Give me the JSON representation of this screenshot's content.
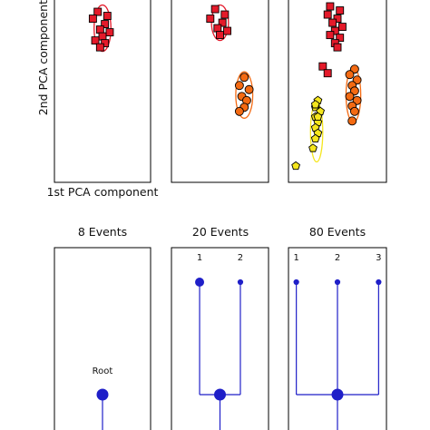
{
  "colors": {
    "red": "#e41a2a",
    "orange": "#f46a12",
    "yellow": "#f5e61c",
    "tree": "#1f1fc8",
    "axis": "#000000"
  },
  "chart_data": {
    "type": "scatter",
    "scatter_panels": {
      "xlabel": "1st PCA component",
      "ylabel": "2nd PCA component",
      "panels": [
        {
          "clusters": [
            {
              "marker": "square",
              "color": "red",
              "points": [
                [
                  0.1,
                  0.95
                ],
                [
                  0.14,
                  0.92
                ],
                [
                  0.08,
                  0.9
                ],
                [
                  0.13,
                  0.86
                ],
                [
                  0.11,
                  0.82
                ],
                [
                  0.15,
                  0.8
                ],
                [
                  0.12,
                  0.77
                ],
                [
                  0.09,
                  0.74
                ],
                [
                  0.13,
                  0.72
                ],
                [
                  0.11,
                  0.69
                ]
              ],
              "ellipse": {
                "cx": 0.12,
                "cy": 0.83,
                "rx": 0.035,
                "ry": 0.17
              }
            }
          ]
        },
        {
          "clusters": [
            {
              "marker": "square",
              "color": "red",
              "points": [
                [
                  0.1,
                  0.97
                ],
                [
                  0.14,
                  0.93
                ],
                [
                  0.08,
                  0.9
                ],
                [
                  0.13,
                  0.87
                ],
                [
                  0.11,
                  0.83
                ],
                [
                  0.15,
                  0.81
                ],
                [
                  0.12,
                  0.78
                ]
              ],
              "ellipse": {
                "cx": 0.12,
                "cy": 0.87,
                "rx": 0.035,
                "ry": 0.13
              }
            },
            {
              "marker": "circle",
              "color": "orange",
              "points": [
                [
                  0.22,
                  0.47
                ],
                [
                  0.2,
                  0.41
                ],
                [
                  0.24,
                  0.38
                ],
                [
                  0.21,
                  0.33
                ],
                [
                  0.23,
                  0.3
                ],
                [
                  0.22,
                  0.25
                ],
                [
                  0.2,
                  0.22
                ]
              ],
              "ellipse": {
                "cx": 0.22,
                "cy": 0.34,
                "rx": 0.035,
                "ry": 0.17
              }
            }
          ]
        },
        {
          "clusters": [
            {
              "marker": "square",
              "color": "red",
              "points": [
                [
                  0.09,
                  0.99
                ],
                [
                  0.13,
                  0.96
                ],
                [
                  0.08,
                  0.93
                ],
                [
                  0.12,
                  0.9
                ],
                [
                  0.1,
                  0.87
                ],
                [
                  0.14,
                  0.84
                ],
                [
                  0.11,
                  0.81
                ],
                [
                  0.09,
                  0.78
                ],
                [
                  0.13,
                  0.76
                ],
                [
                  0.11,
                  0.72
                ],
                [
                  0.12,
                  0.69
                ],
                [
                  0.06,
                  0.55
                ],
                [
                  0.08,
                  0.5
                ]
              ],
              "ellipse": null
            },
            {
              "marker": "circle",
              "color": "orange",
              "points": [
                [
                  0.19,
                  0.53
                ],
                [
                  0.17,
                  0.49
                ],
                [
                  0.2,
                  0.45
                ],
                [
                  0.18,
                  0.41
                ],
                [
                  0.19,
                  0.37
                ],
                [
                  0.17,
                  0.33
                ],
                [
                  0.2,
                  0.3
                ],
                [
                  0.18,
                  0.26
                ],
                [
                  0.19,
                  0.22
                ],
                [
                  0.18,
                  0.15
                ]
              ],
              "ellipse": {
                "cx": 0.185,
                "cy": 0.34,
                "rx": 0.03,
                "ry": 0.2
              }
            },
            {
              "marker": "pentagon",
              "color": "yellow",
              "points": [
                [
                  0.04,
                  0.3
                ],
                [
                  0.03,
                  0.25
                ],
                [
                  0.05,
                  0.22
                ],
                [
                  0.03,
                  0.18
                ],
                [
                  0.04,
                  0.14
                ],
                [
                  0.03,
                  0.1
                ],
                [
                  0.04,
                  0.06
                ],
                [
                  0.03,
                  0.02
                ],
                [
                  0.02,
                  -0.05
                ],
                [
                  0.03,
                  0.27
                ],
                [
                  0.04,
                  0.18
                ],
                [
                  -0.05,
                  -0.18
                ]
              ],
              "ellipse": {
                "cx": 0.035,
                "cy": 0.07,
                "rx": 0.025,
                "ry": 0.22
              }
            }
          ]
        }
      ],
      "xlim": [
        -0.08,
        0.32
      ],
      "ylim": [
        -0.3,
        1.05
      ]
    },
    "tree_panels": [
      {
        "title": "8 Events",
        "leaves": [],
        "root_label": "Root"
      },
      {
        "title": "20 Events",
        "leaves": [
          {
            "label": "1",
            "size": "large"
          },
          {
            "label": "2",
            "size": "small"
          }
        ],
        "root_label": ""
      },
      {
        "title": "80 Events",
        "leaves": [
          {
            "label": "1",
            "size": "small"
          },
          {
            "label": "2",
            "size": "small"
          },
          {
            "label": "3",
            "size": "small"
          }
        ],
        "root_label": ""
      }
    ]
  }
}
